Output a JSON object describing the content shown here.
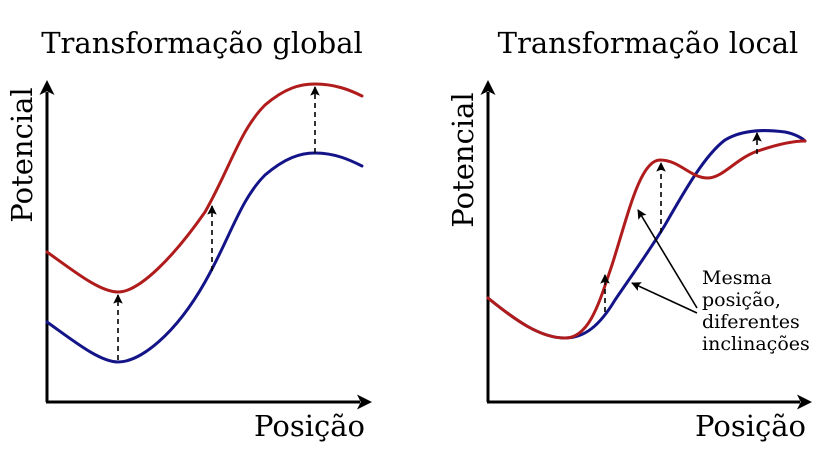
{
  "panels": [
    {
      "title": "Transformação global",
      "xlabel": "Posição",
      "ylabel": "Potencial"
    },
    {
      "title": "Transformação local",
      "xlabel": "Posição",
      "ylabel": "Potencial",
      "annotation": [
        "Mesma",
        "posição,",
        "diferentes",
        "inclinações"
      ]
    }
  ],
  "colors": {
    "red_curve": "#b01c1c",
    "blue_curve": "#141489",
    "axes": "#000000"
  }
}
